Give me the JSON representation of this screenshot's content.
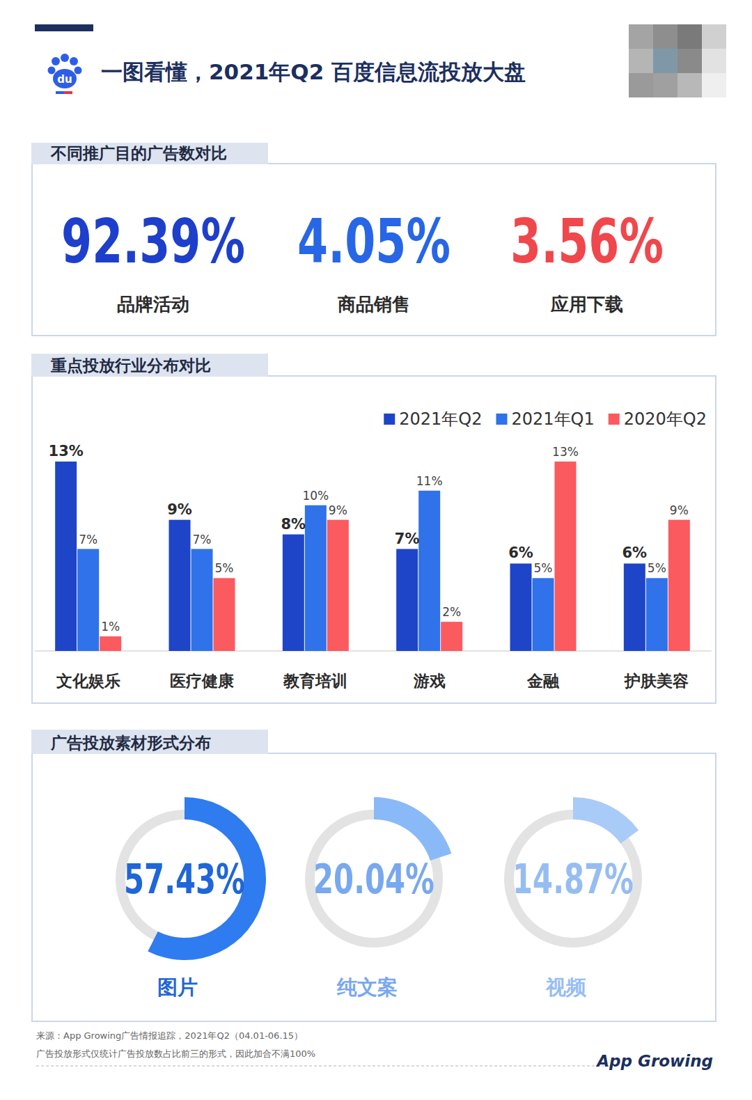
{
  "header": {
    "title": "一图看懂，2021年Q2 百度信息流投放大盘",
    "logo": "du"
  },
  "chart_data": [
    {
      "type": "stat",
      "title": "不同推广目的广告数对比",
      "categories": [
        "品牌活动",
        "商品销售",
        "应用下载"
      ],
      "values": [
        92.39,
        4.05,
        3.56
      ],
      "value_labels": [
        "92.39%",
        "4.05%",
        "3.56%"
      ],
      "colors": [
        "#1d3fcc",
        "#2766e6",
        "#f0474c"
      ]
    },
    {
      "type": "bar",
      "title": "重点投放行业分布对比",
      "categories": [
        "文化娱乐",
        "医疗健康",
        "教育培训",
        "游戏",
        "金融",
        "护肤美容"
      ],
      "series": [
        {
          "name": "2021年Q2",
          "color": "#1e45c8",
          "values": [
            13,
            9,
            8,
            7,
            6,
            6
          ],
          "value_labels": [
            "13%",
            "9%",
            "8%",
            "7%",
            "6%",
            "6%"
          ]
        },
        {
          "name": "2021年Q1",
          "color": "#2f72ea",
          "values": [
            7,
            7,
            10,
            11,
            5,
            5
          ],
          "value_labels": [
            "7%",
            "7%",
            "10%",
            "11%",
            "5%",
            "5%"
          ]
        },
        {
          "name": "2020年Q2",
          "color": "#fb5a5f",
          "values": [
            1,
            5,
            9,
            2,
            13,
            9
          ],
          "value_labels": [
            "1%",
            "5%",
            "9%",
            "2%",
            "13%",
            "9%"
          ]
        }
      ],
      "ylim": [
        0,
        14
      ],
      "legend": "top-right",
      "data_labels": true,
      "tick_labels": "x",
      "grid": false
    },
    {
      "type": "donut",
      "title": "广告投放素材形式分布",
      "categories": [
        "图片",
        "纯文案",
        "视频"
      ],
      "values": [
        57.43,
        20.04,
        14.87
      ],
      "value_labels": [
        "57.43%",
        "20.04%",
        "14.87%"
      ],
      "total": 100,
      "colors": [
        "#2f7bf0",
        "#8ab9f7",
        "#a9cbf7"
      ]
    }
  ],
  "footer": {
    "source": "来源：App Growing广告情报追踪，2021年Q2（04.01-06.15）",
    "note": "广告投放形式仅统计广告投放数占比前三的形式，因此加合不满100%",
    "brand": "App Growing"
  }
}
